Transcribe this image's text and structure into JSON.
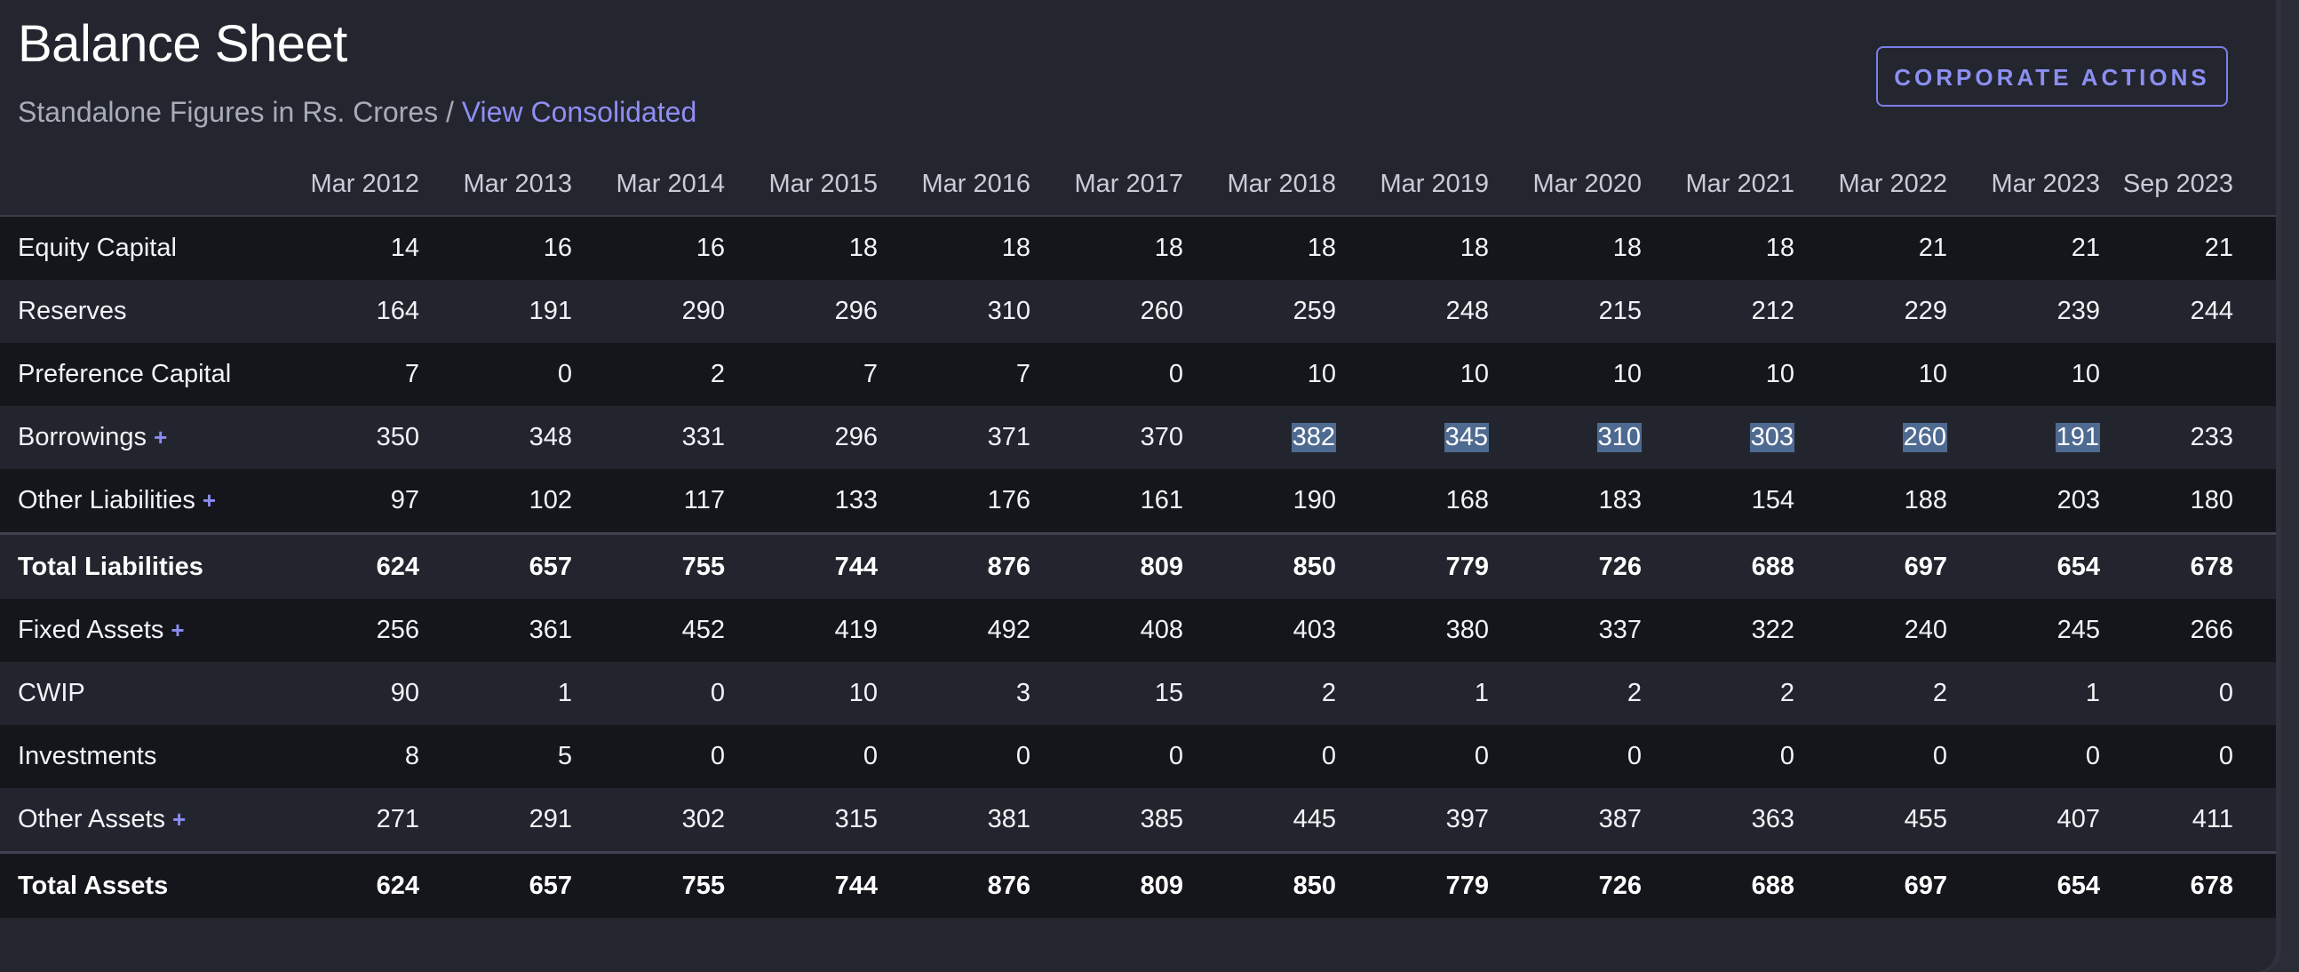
{
  "header": {
    "title": "Balance Sheet",
    "subtitle_prefix": "Standalone Figures in Rs. Crores / ",
    "subtitle_link": "View Consolidated",
    "action_button": "CORPORATE ACTIONS"
  },
  "colors": {
    "accent": "#8f8ef5",
    "selection": "#4f6a91",
    "row_dark": "#14161c",
    "row_light": "#23252e"
  },
  "table": {
    "periods": [
      "Mar 2012",
      "Mar 2013",
      "Mar 2014",
      "Mar 2015",
      "Mar 2016",
      "Mar 2017",
      "Mar 2018",
      "Mar 2019",
      "Mar 2020",
      "Mar 2021",
      "Mar 2022",
      "Mar 2023",
      "Sep 2023"
    ],
    "rows": [
      {
        "label": "Equity Capital",
        "expandable": false,
        "total": false,
        "values": [
          "14",
          "16",
          "16",
          "18",
          "18",
          "18",
          "18",
          "18",
          "18",
          "18",
          "21",
          "21",
          "21"
        ]
      },
      {
        "label": "Reserves",
        "expandable": false,
        "total": false,
        "values": [
          "164",
          "191",
          "290",
          "296",
          "310",
          "260",
          "259",
          "248",
          "215",
          "212",
          "229",
          "239",
          "244"
        ]
      },
      {
        "label": "Preference Capital",
        "expandable": false,
        "total": false,
        "values": [
          "7",
          "0",
          "2",
          "7",
          "7",
          "0",
          "10",
          "10",
          "10",
          "10",
          "10",
          "10",
          ""
        ]
      },
      {
        "label": "Borrowings",
        "expandable": true,
        "total": false,
        "values": [
          "350",
          "348",
          "331",
          "296",
          "371",
          "370",
          "382",
          "345",
          "310",
          "303",
          "260",
          "191",
          "233"
        ],
        "selected_columns": [
          6,
          7,
          8,
          9,
          10,
          11
        ]
      },
      {
        "label": "Other Liabilities",
        "expandable": true,
        "total": false,
        "values": [
          "97",
          "102",
          "117",
          "133",
          "176",
          "161",
          "190",
          "168",
          "183",
          "154",
          "188",
          "203",
          "180"
        ]
      },
      {
        "label": "Total Liabilities",
        "expandable": false,
        "total": true,
        "values": [
          "624",
          "657",
          "755",
          "744",
          "876",
          "809",
          "850",
          "779",
          "726",
          "688",
          "697",
          "654",
          "678"
        ]
      },
      {
        "label": "Fixed Assets",
        "expandable": true,
        "total": false,
        "values": [
          "256",
          "361",
          "452",
          "419",
          "492",
          "408",
          "403",
          "380",
          "337",
          "322",
          "240",
          "245",
          "266"
        ]
      },
      {
        "label": "CWIP",
        "expandable": false,
        "total": false,
        "values": [
          "90",
          "1",
          "0",
          "10",
          "3",
          "15",
          "2",
          "1",
          "2",
          "2",
          "2",
          "1",
          "0"
        ]
      },
      {
        "label": "Investments",
        "expandable": false,
        "total": false,
        "values": [
          "8",
          "5",
          "0",
          "0",
          "0",
          "0",
          "0",
          "0",
          "0",
          "0",
          "0",
          "0",
          "0"
        ]
      },
      {
        "label": "Other Assets",
        "expandable": true,
        "total": false,
        "values": [
          "271",
          "291",
          "302",
          "315",
          "381",
          "385",
          "445",
          "397",
          "387",
          "363",
          "455",
          "407",
          "411"
        ]
      },
      {
        "label": "Total Assets",
        "expandable": false,
        "total": true,
        "values": [
          "624",
          "657",
          "755",
          "744",
          "876",
          "809",
          "850",
          "779",
          "726",
          "688",
          "697",
          "654",
          "678"
        ]
      }
    ],
    "expand_symbol": "+"
  }
}
